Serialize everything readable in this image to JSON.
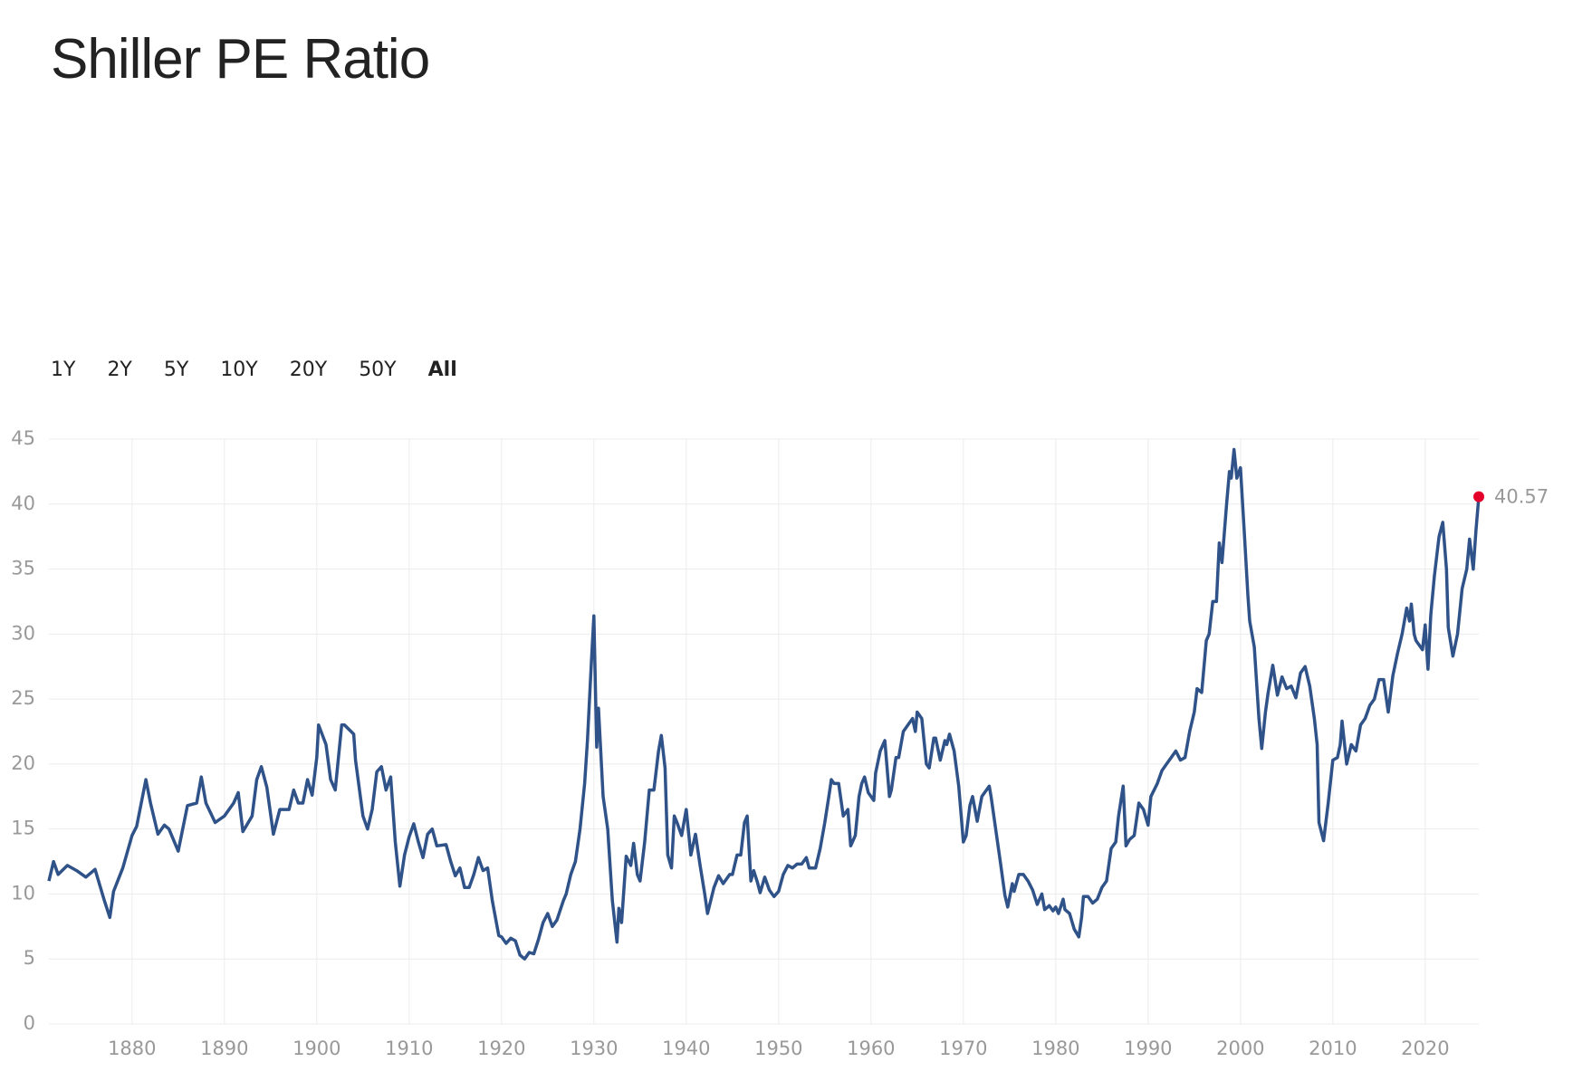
{
  "chart_data": {
    "type": "line",
    "title": "Shiller PE Ratio",
    "range_buttons": [
      "1Y",
      "2Y",
      "5Y",
      "10Y",
      "20Y",
      "50Y",
      "All"
    ],
    "active_range": 6,
    "x": [
      1871,
      1871.5,
      1872,
      1873,
      1874,
      1875,
      1876,
      1877,
      1877.6,
      1878,
      1879,
      1880,
      1880.5,
      1881.5,
      1882,
      1882.8,
      1883.5,
      1884,
      1885,
      1886,
      1887,
      1887.5,
      1888,
      1889,
      1890,
      1891,
      1891.5,
      1892,
      1893,
      1893.5,
      1894,
      1894.6,
      1895.3,
      1896,
      1897,
      1897.5,
      1898,
      1898.5,
      1899,
      1899.5,
      1900,
      1900.2,
      1901,
      1901.5,
      1902,
      1902.7,
      1903,
      1904,
      1904.2,
      1905,
      1905.5,
      1906,
      1906.5,
      1907,
      1907.5,
      1908,
      1908.5,
      1909,
      1909.5,
      1910,
      1910.5,
      1911,
      1911.5,
      1912,
      1912.5,
      1913,
      1914,
      1914.5,
      1915,
      1915.5,
      1916,
      1916.5,
      1917,
      1917.5,
      1918,
      1918.5,
      1919,
      1919.7,
      1920,
      1920.5,
      1921,
      1921.5,
      1922,
      1922.5,
      1923,
      1923.5,
      1924,
      1924.5,
      1925,
      1925.5,
      1926,
      1926.7,
      1927,
      1927.5,
      1928,
      1928.5,
      1929,
      1929.3,
      1929.7,
      1930,
      1930.3,
      1930.5,
      1931,
      1931.5,
      1932,
      1932.5,
      1932.7,
      1933,
      1933.5,
      1934,
      1934.3,
      1934.7,
      1935,
      1935.5,
      1936,
      1936.5,
      1937,
      1937.3,
      1937.7,
      1938,
      1938.4,
      1938.7,
      1939,
      1939.5,
      1940,
      1940.5,
      1941,
      1941.5,
      1942,
      1942.3,
      1943,
      1943.5,
      1944,
      1944.7,
      1945,
      1945.5,
      1945.9,
      1946.3,
      1946.6,
      1947,
      1947.3,
      1947.7,
      1948,
      1948.5,
      1949,
      1949.5,
      1950,
      1950.5,
      1951,
      1951.5,
      1952,
      1952.5,
      1953,
      1953.3,
      1954,
      1954.5,
      1955,
      1955.5,
      1955.7,
      1956,
      1956.5,
      1957,
      1957.5,
      1957.8,
      1958.3,
      1958.7,
      1959,
      1959.3,
      1959.7,
      1960.3,
      1960.5,
      1961,
      1961.5,
      1962,
      1962.2,
      1962.7,
      1963,
      1963.5,
      1964,
      1964.5,
      1964.8,
      1965,
      1965.5,
      1966,
      1966.3,
      1966.8,
      1967,
      1967.5,
      1968,
      1968.2,
      1968.5,
      1969,
      1969.5,
      1970,
      1970.3,
      1970.7,
      1971,
      1971.5,
      1972,
      1972.5,
      1972.8,
      1973,
      1973.5,
      1974,
      1974.5,
      1974.8,
      1975.3,
      1975.5,
      1976,
      1976.5,
      1977,
      1977.5,
      1978,
      1978.5,
      1978.8,
      1979.3,
      1979.7,
      1980,
      1980.3,
      1980.8,
      1981,
      1981.5,
      1982,
      1982.5,
      1982.8,
      1983,
      1983.5,
      1984,
      1984.5,
      1985,
      1985.5,
      1986,
      1986.5,
      1986.8,
      1987.3,
      1987.6,
      1988,
      1988.5,
      1989,
      1989.5,
      1990,
      1990.3,
      1991,
      1991.5,
      1992,
      1992.5,
      1993,
      1993.5,
      1994,
      1994.5,
      1995,
      1995.3,
      1995.8,
      1996.3,
      1996.6,
      1997,
      1997.4,
      1997.7,
      1998,
      1998.5,
      1998.8,
      1999,
      1999.3,
      1999.6,
      2000,
      2000.4,
      2000.8,
      2001,
      2001.5,
      2002,
      2002.3,
      2002.7,
      2003,
      2003.5,
      2004,
      2004.5,
      2005,
      2005.5,
      2006,
      2006.5,
      2007,
      2007.5,
      2008,
      2008.3,
      2008.5,
      2009,
      2009.5,
      2010,
      2010.5,
      2010.8,
      2011,
      2011.5,
      2012,
      2012.5,
      2013,
      2013.5,
      2014,
      2014.5,
      2015,
      2015.5,
      2016,
      2016.5,
      2017,
      2017.5,
      2018,
      2018.3,
      2018.5,
      2018.8,
      2019,
      2019.7,
      2020,
      2020.3,
      2020.6,
      2021,
      2021.5,
      2021.9,
      2022.3,
      2022.5,
      2023,
      2023.5,
      2024,
      2024.5,
      2024.8,
      2025.2,
      2025.5,
      2025.8
    ],
    "series": [
      {
        "name": "Shiller PE Ratio",
        "color": "#2f5289",
        "values": [
          11,
          12.5,
          11.5,
          12.2,
          11.8,
          11.3,
          11.9,
          9.5,
          8.2,
          10.2,
          12,
          14.5,
          15.2,
          18.8,
          17,
          14.6,
          15.3,
          15,
          13.3,
          16.8,
          17,
          19,
          17,
          15.5,
          16,
          17,
          17.8,
          14.8,
          16,
          18.8,
          19.8,
          18.2,
          14.6,
          16.5,
          16.5,
          18,
          17,
          17,
          18.8,
          17.6,
          20.5,
          23,
          21.5,
          18.8,
          18,
          23,
          23,
          22.3,
          20.3,
          16,
          15,
          16.5,
          19.4,
          19.8,
          18,
          19,
          14,
          10.6,
          13,
          14.4,
          15.4,
          14,
          12.8,
          14.6,
          15,
          13.7,
          13.8,
          12.5,
          11.4,
          12,
          10.5,
          10.5,
          11.5,
          12.8,
          11.8,
          12,
          9.5,
          6.8,
          6.7,
          6.2,
          6.6,
          6.4,
          5.3,
          5.0,
          5.5,
          5.4,
          6.5,
          7.8,
          8.5,
          7.5,
          8.0,
          9.5,
          10,
          11.5,
          12.5,
          15,
          18.5,
          21.8,
          27.5,
          31.4,
          21.3,
          24.3,
          17.5,
          15,
          9.5,
          6.3,
          8.9,
          7.8,
          12.9,
          12.2,
          13.9,
          11.5,
          11,
          14,
          18,
          18,
          21,
          22.2,
          19.7,
          13,
          12,
          16,
          15.5,
          14.5,
          16.5,
          13,
          14.6,
          12.2,
          10,
          8.5,
          10.5,
          11.4,
          10.8,
          11.5,
          11.5,
          13,
          13,
          15.5,
          16,
          11,
          11.8,
          10.9,
          10.1,
          11.3,
          10.3,
          9.8,
          10.2,
          11.5,
          12.2,
          12,
          12.3,
          12.3,
          12.8,
          12,
          12,
          13.5,
          15.5,
          17.8,
          18.8,
          18.5,
          18.5,
          16,
          16.5,
          13.7,
          14.5,
          17.5,
          18.5,
          19,
          17.8,
          17.2,
          19.3,
          21,
          21.8,
          17.5,
          18,
          20.5,
          20.5,
          22.5,
          23,
          23.5,
          22.5,
          24,
          23.5,
          20,
          19.7,
          22,
          22,
          20.3,
          21.8,
          21.5,
          22.3,
          21,
          18.3,
          14,
          14.5,
          16.8,
          17.5,
          15.6,
          17.5,
          18,
          18.3,
          17.5,
          15,
          12.5,
          9.9,
          9,
          10.8,
          10.2,
          11.5,
          11.5,
          11,
          10.3,
          9.2,
          10,
          8.8,
          9.1,
          8.7,
          9,
          8.5,
          9.6,
          8.8,
          8.5,
          7.3,
          6.7,
          8.2,
          9.8,
          9.8,
          9.3,
          9.6,
          10.5,
          11,
          13.5,
          14,
          16,
          18.3,
          13.7,
          14.2,
          14.5,
          17,
          16.5,
          15.3,
          17.5,
          18.5,
          19.5,
          20,
          20.5,
          21,
          20.3,
          20.5,
          22.5,
          24,
          25.8,
          25.5,
          29.5,
          30,
          32.5,
          32.5,
          37,
          35.5,
          40,
          42.5,
          42,
          44.2,
          42,
          42.8,
          38,
          33,
          31,
          29,
          23.5,
          21.2,
          24,
          25.5,
          27.6,
          25.3,
          26.7,
          25.8,
          26,
          25.1,
          27,
          27.5,
          26,
          23.5,
          21.5,
          15.5,
          14.1,
          17,
          20.3,
          20.5,
          21.5,
          23.3,
          20,
          21.5,
          21,
          23,
          23.5,
          24.5,
          25,
          26.5,
          26.5,
          24,
          26.8,
          28.5,
          30,
          32,
          31,
          32.3,
          30,
          29.5,
          28.8,
          30.7,
          27.3,
          31.5,
          34.5,
          37.5,
          38.6,
          35,
          30.5,
          28.3,
          30,
          33.5,
          35,
          37.3,
          35,
          38,
          40.57
        ]
      }
    ],
    "last_point_color": "#e4002b",
    "xlim": [
      1871,
      2025.8
    ],
    "ylim": [
      0,
      45
    ],
    "xticks": [
      1880,
      1890,
      1900,
      1910,
      1920,
      1930,
      1940,
      1950,
      1960,
      1970,
      1980,
      1990,
      2000,
      2010,
      2020
    ],
    "yticks": [
      0,
      5,
      10,
      15,
      20,
      25,
      30,
      35,
      40,
      45
    ],
    "grid": true
  }
}
